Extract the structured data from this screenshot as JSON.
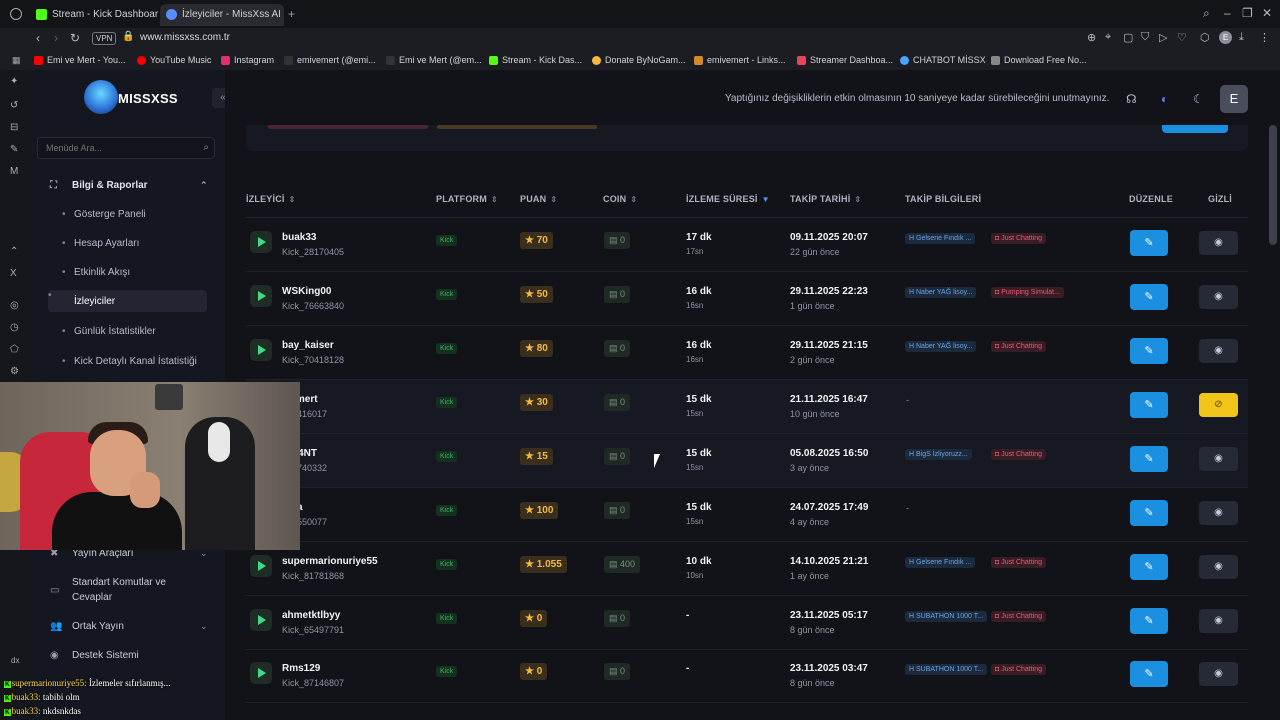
{
  "browser": {
    "tabs": [
      {
        "label": "Stream - Kick Dashboard",
        "color": "#53fc18"
      },
      {
        "label": "İzleyiciler - MissXss AI Bo",
        "color": "#5b8cff"
      }
    ],
    "vpn": "VPN",
    "url": "www.missxss.com.tr",
    "profile_initial": "E",
    "bookmarks": [
      {
        "label": "Emi ve Mert - You...",
        "color": "#ff0000"
      },
      {
        "label": "YouTube Music",
        "color": "#ff0000"
      },
      {
        "label": "Instagram",
        "color": "#e1306c"
      },
      {
        "label": "emivemert (@emi...",
        "color": "#222222"
      },
      {
        "label": "Emi ve Mert (@em...",
        "color": "#222222"
      },
      {
        "label": "Stream - Kick Das...",
        "color": "#53fc18"
      },
      {
        "label": "Donate ByNoGam...",
        "color": "#f5b942"
      },
      {
        "label": "emivemert - Links...",
        "color": "#d28b2b"
      },
      {
        "label": "Streamer Dashboa...",
        "color": "#e9455a"
      },
      {
        "label": "CHATBOT MİSSX",
        "color": "#4aa3ff"
      },
      {
        "label": "Download Free No...",
        "color": "#888888"
      }
    ]
  },
  "app": {
    "logo_text": "MISSXSS",
    "menu_search_placeholder": "Menüde Ara...",
    "section_title": "Bilgi & Raporlar",
    "menu_items": [
      "Gösterge Paneli",
      "Hesap Ayarları",
      "Etkinlik Akışı",
      "İzleyiciler",
      "Günlük İstatistikler",
      "Kick Detaylı Kanal İstatistiği"
    ],
    "lower_sections": [
      {
        "label": "Yayın Araçları"
      },
      {
        "label": "Standart Komutlar ve",
        "label2": "Cevaplar"
      },
      {
        "label": "Ortak Yayın"
      },
      {
        "label": "Destek Sistemi"
      }
    ],
    "notice": "Yaptığınız değişikliklerin etkin olmasının 10 saniyeye kadar sürebileceğini unutmayınız.",
    "user_initial": "E"
  },
  "table": {
    "headers": {
      "viewer": "İZLEYİCİ",
      "platform": "PLATFORM",
      "points": "PUAN",
      "coin": "COIN",
      "watch": "İZLEME SÜRESİ",
      "follow_date": "TAKİP TARİHİ",
      "follow_info": "TAKİP BİLGİLERİ",
      "edit": "DÜZENLE",
      "hidden": "GİZLİ"
    },
    "rows": [
      {
        "name": "buak33",
        "id": "Kick_28170405",
        "platform": "Kick",
        "points": "70",
        "coin": "0",
        "duration": "17 dk",
        "duration_sub": "17sn",
        "date": "09.11.2025 20:07",
        "ago": "22 gün önce",
        "tag1": "Gelsene Fındık ...",
        "tag2": "Just Chatting",
        "hidden": false
      },
      {
        "name": "WSKing00",
        "id": "Kick_76663840",
        "platform": "Kick",
        "points": "50",
        "coin": "0",
        "duration": "16 dk",
        "duration_sub": "16sn",
        "date": "29.11.2025 22:23",
        "ago": "1 gün önce",
        "tag1": "Naber YAĞ lisoy...",
        "tag2": "Pumping Simulat...",
        "hidden": false
      },
      {
        "name": "bay_kaiser",
        "id": "Kick_70418128",
        "platform": "Kick",
        "points": "80",
        "coin": "0",
        "duration": "16 dk",
        "duration_sub": "16sn",
        "date": "29.11.2025 21:15",
        "ago": "2 gün önce",
        "tag1": "Naber YAĞ lisoy...",
        "tag2": "Just Chatting",
        "hidden": false
      },
      {
        "name": "ivemert",
        "id": "_70416017",
        "platform": "Kick",
        "points": "30",
        "coin": "0",
        "duration": "15 dk",
        "duration_sub": "15sn",
        "date": "21.11.2025 16:47",
        "ago": "10 gün önce",
        "tag1": "",
        "tag2": "",
        "nodash": "-",
        "hidden": true
      },
      {
        "name": "ntS4NT",
        "id": "_29740332",
        "platform": "Kick",
        "points": "15",
        "coin": "0",
        "duration": "15 dk",
        "duration_sub": "15sn",
        "date": "05.08.2025 16:50",
        "ago": "3 ay önce",
        "tag1": "BigS İzliyoruzz...",
        "tag2": "Just Chatting",
        "hidden": false
      },
      {
        "name": "esra",
        "id": "_70550077",
        "platform": "Kick",
        "points": "100",
        "coin": "0",
        "duration": "15 dk",
        "duration_sub": "15sn",
        "date": "24.07.2025 17:49",
        "ago": "4 ay önce",
        "tag1": "",
        "tag2": "",
        "nodash": "-",
        "hidden": false
      },
      {
        "name": "supermarionuriye55",
        "id": "Kick_81781868",
        "platform": "Kick",
        "points": "1.055",
        "coin": "400",
        "duration": "10 dk",
        "duration_sub": "10sn",
        "date": "14.10.2025 21:21",
        "ago": "1 ay önce",
        "tag1": "Gelsene Fındık ...",
        "tag2": "Just Chatting",
        "hidden": false
      },
      {
        "name": "ahmetktlbyy",
        "id": "Kick_65497791",
        "platform": "Kick",
        "points": "0",
        "coin": "0",
        "duration": "-",
        "duration_sub": "",
        "date": "23.11.2025 05:17",
        "ago": "8 gün önce",
        "tag1": "SUBATHON 1000 T...",
        "tag2": "Just Chatting",
        "hidden": false
      },
      {
        "name": "Rms129",
        "id": "Kick_87146807",
        "platform": "Kick",
        "points": "0",
        "coin": "0",
        "duration": "-",
        "duration_sub": "",
        "date": "23.11.2025 03:47",
        "ago": "8 gün önce",
        "tag1": "SUBATHON 1000 T...",
        "tag2": "Just Chatting",
        "hidden": false
      }
    ]
  },
  "overlay": {
    "dx": "dx",
    "chat": [
      {
        "user": "supermarionuriye55:",
        "msg": " İzlemeler sıfırlanmış..."
      },
      {
        "user": "buak33:",
        "msg": " tabibi olm"
      },
      {
        "user": "buak33:",
        "msg": " nkdsnkdas"
      }
    ]
  }
}
